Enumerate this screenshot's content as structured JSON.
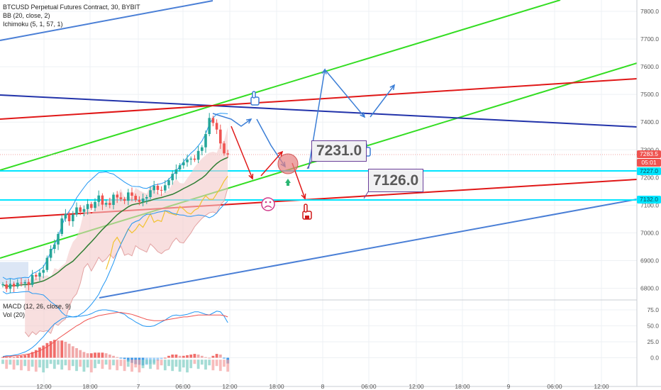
{
  "header": {
    "symbol": "BTCUSD Perpetual Futures Contract, 30, BYBIT",
    "ind1": "BB (20, close, 2)",
    "ind2": "Ichimoku (5, 1, 57, 1)",
    "macd_label": "MACD (12, 26, close, 9)",
    "vol_label": "Vol (20)"
  },
  "price_tags": {
    "current": "7283.5",
    "countdown": "05:01",
    "level1": "7227.0",
    "level2": "7132.0"
  },
  "annotations": {
    "target_high": "7231.0",
    "target_low": "7126.0"
  },
  "colors": {
    "bull": "#26a69a",
    "bear": "#ef5350",
    "cyan": "#00e5ff",
    "green_channel": "#33dd22",
    "red_line": "#e01818",
    "blue_line": "#2233aa",
    "steel_line": "#4a7fd6",
    "bb": "#2196f3",
    "bb_basis": "#2e7d32",
    "ichimoku_fill": "#f3c9c9",
    "kumo_line": "#f2c230",
    "macd_line": "#2196f3",
    "signal_line": "#ef5350"
  },
  "chart_data": [
    {
      "type": "line",
      "title": "BTCUSD Perpetual Futures Contract, 30, BYBIT",
      "ylim": [
        6760,
        7830
      ],
      "y_ticks": [
        "7800.0",
        "7700.0",
        "7600.0",
        "7500.0",
        "7400.0",
        "7300.0",
        "7200.0",
        "7100.0",
        "7000.0",
        "6900.0",
        "6800.0"
      ],
      "x_ticks": [
        "12:00",
        "18:00",
        "7",
        "06:00",
        "12:00",
        "18:00",
        "8",
        "06:00",
        "12:00",
        "18:00",
        "9",
        "06:00",
        "12:00"
      ],
      "horizontal_levels": [
        7227.0,
        7132.0
      ],
      "ohlc": {
        "open": [
          6811,
          6814,
          6798,
          6816,
          6806,
          6820,
          6818,
          6822,
          6812,
          6848,
          6842,
          6856,
          6866,
          6910,
          6942,
          6958,
          6996,
          7052,
          7068,
          7042,
          7066,
          7092,
          7076,
          7086,
          7104,
          7090,
          7112,
          7135,
          7102,
          7108,
          7101,
          7138,
          7128,
          7122,
          7116,
          7146,
          7134,
          7119,
          7112,
          7124,
          7129,
          7154,
          7170,
          7155,
          7153,
          7172,
          7190,
          7213,
          7229,
          7244,
          7255,
          7265,
          7268,
          7264,
          7296,
          7309,
          7357,
          7415,
          7397,
          7373,
          7323,
          7287
        ],
        "close": [
          6814,
          6798,
          6816,
          6806,
          6820,
          6818,
          6822,
          6812,
          6848,
          6842,
          6856,
          6866,
          6910,
          6942,
          6958,
          6996,
          7052,
          7068,
          7042,
          7066,
          7092,
          7076,
          7086,
          7104,
          7090,
          7112,
          7135,
          7102,
          7108,
          7101,
          7138,
          7128,
          7122,
          7116,
          7146,
          7134,
          7119,
          7112,
          7124,
          7129,
          7154,
          7170,
          7155,
          7153,
          7172,
          7190,
          7213,
          7229,
          7244,
          7255,
          7265,
          7268,
          7264,
          7296,
          7309,
          7357,
          7415,
          7397,
          7373,
          7323,
          7287,
          7283
        ]
      }
    },
    {
      "type": "line",
      "title": "MACD (12, 26, close, 9)",
      "ylim": [
        -18,
        82
      ],
      "y_ticks": [
        "75.0",
        "50.0",
        "25.0",
        "0.0"
      ],
      "series": [
        {
          "name": "MACD",
          "values": [
            2,
            3,
            3,
            4,
            5,
            7,
            9,
            12,
            16,
            21,
            27,
            33,
            40,
            47,
            53,
            57,
            61,
            63,
            64,
            64,
            65,
            65,
            66,
            67,
            69,
            72,
            74,
            75,
            75,
            74,
            73,
            72,
            70,
            68,
            63,
            60,
            56,
            53,
            50,
            49,
            49,
            50,
            53,
            56,
            59,
            63,
            66,
            67,
            66,
            67,
            68,
            70,
            72,
            72,
            70,
            68,
            67,
            70,
            73,
            72,
            65,
            55
          ]
        },
        {
          "name": "Signal",
          "values": [
            1,
            2,
            2,
            3,
            3,
            4,
            5,
            6,
            7,
            9,
            11,
            14,
            17,
            21,
            25,
            30,
            34,
            38,
            42,
            46,
            50,
            53,
            57,
            60,
            62,
            64,
            66,
            67,
            68,
            69,
            70,
            71,
            71,
            70,
            69,
            68,
            66,
            64,
            62,
            60,
            59,
            58,
            58,
            58,
            59,
            60,
            61,
            62,
            63,
            64,
            64,
            65,
            66,
            67,
            67,
            67,
            67,
            67,
            67,
            67,
            66,
            64
          ]
        },
        {
          "name": "Histogram",
          "values": [
            1,
            1,
            1,
            1,
            2,
            3,
            4,
            6,
            9,
            12,
            16,
            19,
            23,
            26,
            28,
            27,
            27,
            25,
            22,
            18,
            15,
            12,
            9,
            7,
            7,
            8,
            8,
            8,
            7,
            5,
            3,
            1,
            -1,
            -2,
            -6,
            -8,
            -10,
            -11,
            -12,
            -11,
            -10,
            -8,
            -5,
            -2,
            0,
            3,
            5,
            5,
            3,
            3,
            4,
            5,
            6,
            5,
            3,
            1,
            0,
            3,
            6,
            5,
            -1,
            -9
          ]
        }
      ]
    }
  ]
}
